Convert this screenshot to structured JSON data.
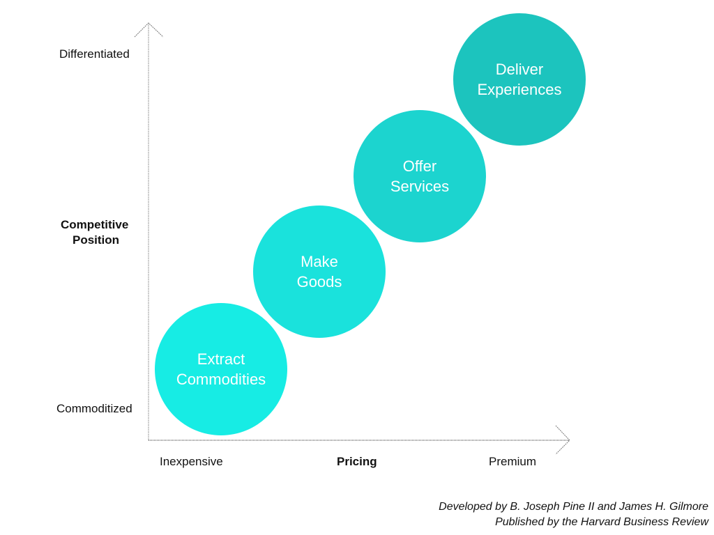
{
  "y_axis": {
    "title_line1": "Competitive",
    "title_line2": "Position",
    "top": "Differentiated",
    "bottom": "Commoditized"
  },
  "x_axis": {
    "title": "Pricing",
    "left": "Inexpensive",
    "right": "Premium"
  },
  "stages": [
    {
      "line1": "Extract",
      "line2": "Commodities",
      "color": "#17ECE4"
    },
    {
      "line1": "Make",
      "line2": "Goods",
      "color": "#1AE2DC"
    },
    {
      "line1": "Offer",
      "line2": "Services",
      "color": "#1CD4CF"
    },
    {
      "line1": "Deliver",
      "line2": "Experiences",
      "color": "#1CC4BE"
    }
  ],
  "credits": {
    "line1": "Developed by B. Joseph Pine II and James H. Gilmore",
    "line2": "Published by the Harvard Business Review"
  }
}
